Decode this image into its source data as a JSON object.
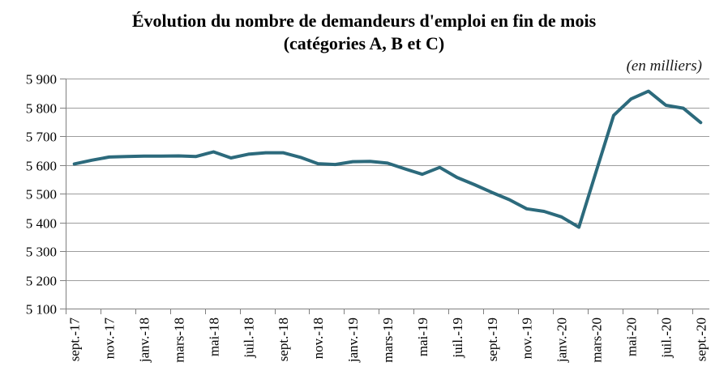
{
  "chart": {
    "title_line1": "Évolution du nombre de demandeurs d'emploi en fin de mois",
    "title_line2": "(catégories A, B et C)",
    "unit_label": "(en milliers)"
  },
  "chart_data": {
    "type": "line",
    "title": "Évolution du nombre de demandeurs d'emploi en fin de mois (catégories A, B et C)",
    "unit": "(en milliers)",
    "x": [
      "sept.-17",
      "oct.-17",
      "nov.-17",
      "déc.-17",
      "janv.-18",
      "févr.-18",
      "mars-18",
      "avr.-18",
      "mai-18",
      "juin-18",
      "juil.-18",
      "août-18",
      "sept.-18",
      "oct.-18",
      "nov.-18",
      "déc.-18",
      "janv.-19",
      "févr.-19",
      "mars-19",
      "avr.-19",
      "mai-19",
      "juin-19",
      "juil.-19",
      "août-19",
      "sept.-19",
      "oct.-19",
      "nov.-19",
      "déc.-19",
      "janv.-20",
      "févr.-20",
      "mars-20",
      "avr.-20",
      "mai-20",
      "juin-20",
      "juil.-20",
      "août-20",
      "sept.-20"
    ],
    "values": [
      5603,
      5616,
      5627,
      5629,
      5630,
      5630,
      5631,
      5629,
      5645,
      5624,
      5637,
      5642,
      5642,
      5626,
      5604,
      5601,
      5611,
      5612,
      5606,
      5586,
      5567,
      5591,
      5556,
      5531,
      5504,
      5479,
      5447,
      5438,
      5419,
      5383,
      5578,
      5772,
      5829,
      5856,
      5807,
      5797,
      5747
    ],
    "x_tick_labels": [
      "sept.-17",
      "nov.-17",
      "janv.-18",
      "mars-18",
      "mai-18",
      "juil.-18",
      "sept.-18",
      "nov.-18",
      "janv.-19",
      "mars-19",
      "mai-19",
      "juil.-19",
      "sept.-19",
      "nov.-19",
      "janv.-20",
      "mars-20",
      "mai-20",
      "juil.-20",
      "sept.-20"
    ],
    "y_tick_labels": [
      "5 100",
      "5 200",
      "5 300",
      "5 400",
      "5 500",
      "5 600",
      "5 700",
      "5 800",
      "5 900"
    ],
    "ylim": [
      5100,
      5900
    ],
    "y_tick_step": 100,
    "grid": "horizontal",
    "legend": "none",
    "colors": {
      "line": "#2C6A7C",
      "grid": "#9D9D9D",
      "axis": "#808080",
      "text": "#000000",
      "background": "#FFFFFF"
    }
  }
}
